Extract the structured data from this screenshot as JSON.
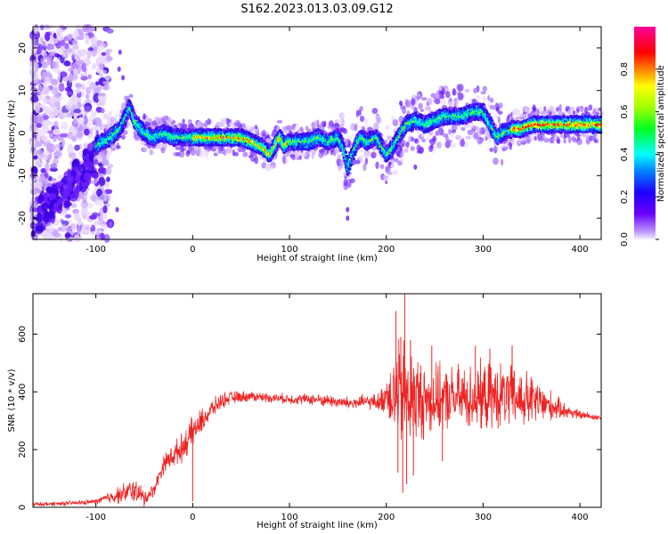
{
  "title": "S162.2023.013.03.09.G12",
  "colors": {
    "snr_line": "#ee2222",
    "ridge": "#ff0000",
    "scatter_faint": "#cfb4f0",
    "scatter_mid": "#8a44ea",
    "scatter_dark": "#3a00cc"
  },
  "chart_data": [
    {
      "type": "heatmap",
      "title": "",
      "xlabel": "Height of straight line (km)",
      "ylabel": "Frequency (Hz)",
      "xlim": [
        -165,
        422
      ],
      "ylim": [
        -25,
        25
      ],
      "xticks": [
        "-100",
        "0",
        "100",
        "200",
        "300",
        "400"
      ],
      "yticks": [
        "-20",
        "-10",
        "0",
        "10",
        "20"
      ],
      "xtick_values": [
        -100,
        0,
        100,
        200,
        300,
        400
      ],
      "ytick_values": [
        -20,
        -10,
        0,
        10,
        20
      ],
      "colorbar": {
        "label": "Normalized spectral amplitude",
        "range": [
          0,
          1
        ],
        "ticks": [
          "0.0",
          "0.2",
          "0.4",
          "0.6",
          "0.8"
        ],
        "tick_values": [
          0,
          0.2,
          0.4,
          0.6,
          0.8
        ],
        "colormap": "rainbow (purple → blue → cyan → green → yellow → red → magenta)"
      },
      "ridge_x": [
        -100,
        -85,
        -75,
        -65,
        -60,
        -50,
        -40,
        -30,
        -20,
        -10,
        0,
        10,
        20,
        30,
        40,
        50,
        60,
        70,
        80,
        85,
        90,
        95,
        100,
        110,
        120,
        130,
        140,
        150,
        155,
        160,
        165,
        170,
        175,
        180,
        190,
        200,
        205,
        210,
        220,
        230,
        240,
        250,
        260,
        270,
        280,
        290,
        300,
        305,
        310,
        315,
        320,
        330,
        340,
        350,
        360,
        370,
        380,
        390,
        400,
        410,
        422
      ],
      "ridge_y": [
        -3,
        -1,
        1,
        6,
        3,
        0,
        -1,
        0,
        -1,
        -1,
        -1,
        -1,
        -1,
        -1,
        -1,
        -1,
        -2,
        -3,
        -5,
        -3,
        -1,
        -3,
        -2,
        -2,
        -2,
        -1,
        -2,
        -1,
        -3,
        -8,
        -5,
        -2,
        -1,
        -2,
        -1,
        -5,
        -4,
        -2,
        2,
        3,
        2,
        3,
        4,
        4,
        4,
        5,
        5,
        3,
        1,
        -1,
        0,
        1,
        1,
        2,
        2,
        2,
        2,
        2,
        2,
        2,
        2
      ]
    },
    {
      "type": "line",
      "title": "",
      "xlabel": "Height of straight line (km)",
      "ylabel": "SNR (10 * v/v)",
      "xlim": [
        -165,
        422
      ],
      "ylim": [
        0,
        740
      ],
      "xticks": [
        "-100",
        "0",
        "100",
        "200",
        "300",
        "400"
      ],
      "yticks": [
        "0",
        "200",
        "400",
        "600"
      ],
      "xtick_values": [
        -100,
        0,
        100,
        200,
        300,
        400
      ],
      "ytick_values": [
        0,
        200,
        400,
        600
      ],
      "envelope_x": [
        -165,
        -120,
        -100,
        -80,
        -60,
        -50,
        -40,
        -30,
        -20,
        -10,
        0,
        10,
        20,
        30,
        40,
        60,
        80,
        100,
        120,
        140,
        160,
        180,
        195,
        200,
        210,
        220,
        230,
        240,
        260,
        280,
        300,
        320,
        340,
        360,
        380,
        400,
        422
      ],
      "envelope_y": [
        10,
        15,
        20,
        40,
        60,
        30,
        60,
        150,
        180,
        210,
        260,
        300,
        340,
        370,
        380,
        385,
        380,
        375,
        375,
        370,
        360,
        365,
        365,
        400,
        390,
        390,
        380,
        370,
        375,
        380,
        380,
        385,
        375,
        360,
        340,
        320,
        310
      ],
      "noise_x": [
        -165,
        -100,
        -80,
        -60,
        -40,
        -20,
        0,
        20,
        40,
        80,
        120,
        160,
        190,
        200,
        210,
        220,
        240,
        260,
        300,
        340,
        360,
        380,
        400,
        422
      ],
      "noise_amp": [
        6,
        8,
        25,
        40,
        20,
        40,
        50,
        30,
        20,
        15,
        18,
        22,
        25,
        60,
        170,
        180,
        120,
        100,
        110,
        100,
        70,
        30,
        15,
        10
      ],
      "spikes": [
        {
          "x": 210,
          "y": 680
        },
        {
          "x": 212,
          "y": 120
        },
        {
          "x": 215,
          "y": 590
        },
        {
          "x": 217,
          "y": 50
        },
        {
          "x": 219,
          "y": 740
        },
        {
          "x": 221,
          "y": 80
        },
        {
          "x": 225,
          "y": 580
        },
        {
          "x": 228,
          "y": 110
        },
        {
          "x": 0,
          "y": 20
        },
        {
          "x": 247,
          "y": 560
        },
        {
          "x": 292,
          "y": 560
        },
        {
          "x": 307,
          "y": 550
        },
        {
          "x": 258,
          "y": 160
        },
        {
          "x": 330,
          "y": 560
        }
      ]
    }
  ]
}
